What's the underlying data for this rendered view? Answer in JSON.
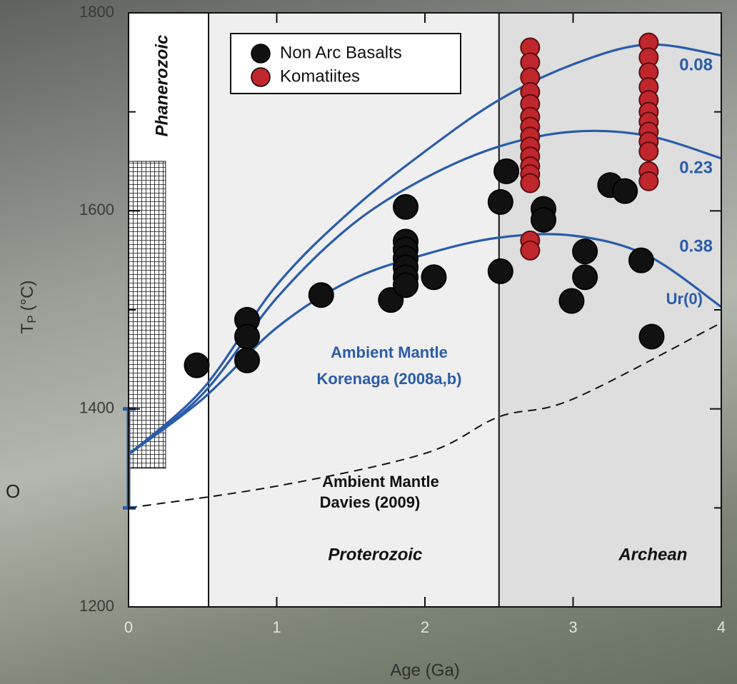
{
  "chart_data": {
    "type": "scatter",
    "xlabel": "Age (Ga)",
    "ylabel": [
      "T",
      "P",
      "(°C)"
    ],
    "xlim": [
      0,
      4
    ],
    "ylim": [
      1200,
      1800
    ],
    "xticks": [
      0,
      1,
      2,
      3,
      4
    ],
    "yticks": [
      1200,
      1400,
      1600,
      1800
    ],
    "yminor": [
      1300,
      1500,
      1700
    ],
    "legend": "upper-center",
    "eras": [
      {
        "label": "Phanerozoic",
        "xlim": [
          0,
          0.54
        ],
        "color": "#ffffff"
      },
      {
        "label": "Proterozoic",
        "xlim": [
          0.54,
          2.5
        ],
        "color": "#efefef"
      },
      {
        "label": "Archean",
        "xlim": [
          2.5,
          4
        ],
        "color": "#dedede"
      }
    ],
    "hatched_range": {
      "xlim": [
        0,
        0.25
      ],
      "ylim": [
        1340,
        1650
      ]
    },
    "error_bar": {
      "x": 0,
      "low": 1300,
      "high": 1400,
      "color": "#2a5ca8"
    },
    "series": [
      {
        "name": "Non Arc Basalts",
        "color": "#111111",
        "x": [
          0.46,
          0.8,
          0.8,
          0.8,
          1.3,
          1.77,
          1.87,
          1.87,
          1.87,
          1.87,
          1.87,
          1.87,
          1.87,
          2.06,
          2.51,
          2.55,
          2.51,
          2.8,
          2.8,
          2.99,
          3.08,
          3.08,
          3.25,
          3.35,
          3.46,
          3.53
        ],
        "values": [
          1444,
          1490,
          1473,
          1449,
          1515,
          1510,
          1604,
          1569,
          1561,
          1552,
          1543,
          1533,
          1525,
          1533,
          1609,
          1640,
          1539,
          1602,
          1591,
          1509,
          1559,
          1533,
          1626,
          1620,
          1550,
          1473
        ]
      },
      {
        "name": "Komatiites",
        "color": "#c0272d",
        "x": [
          2.71,
          2.71,
          2.71,
          2.71,
          2.71,
          2.71,
          2.71,
          2.71,
          2.71,
          2.71,
          2.71,
          2.71,
          2.71,
          2.71,
          2.71,
          3.51,
          3.51,
          3.51,
          3.51,
          3.51,
          3.51,
          3.51,
          3.51,
          3.51,
          3.51,
          3.51,
          3.51
        ],
        "values": [
          1765,
          1750,
          1735,
          1720,
          1708,
          1695,
          1685,
          1675,
          1665,
          1655,
          1645,
          1637,
          1628,
          1570,
          1560,
          1770,
          1755,
          1740,
          1725,
          1712,
          1700,
          1690,
          1680,
          1670,
          1660,
          1640,
          1630
        ]
      }
    ],
    "curves": [
      {
        "label": "0.08",
        "color": "#2a5ca8",
        "x": [
          0,
          0.5,
          1,
          1.5,
          2,
          2.5,
          3,
          3.5,
          4
        ],
        "values": [
          1354,
          1420,
          1525,
          1600,
          1660,
          1712,
          1748,
          1768,
          1757
        ]
      },
      {
        "label": "0.23",
        "color": "#2a5ca8",
        "x": [
          0,
          0.5,
          1,
          1.5,
          2,
          2.5,
          3,
          3.5,
          4
        ],
        "values": [
          1354,
          1415,
          1512,
          1585,
          1633,
          1665,
          1680,
          1676,
          1653
        ]
      },
      {
        "label": "0.38",
        "color": "#2a5ca8",
        "x": [
          0,
          0.5,
          1,
          1.5,
          2,
          2.5,
          3,
          3.5,
          4
        ],
        "values": [
          1354,
          1410,
          1482,
          1530,
          1556,
          1573,
          1575,
          1555,
          1503
        ]
      },
      {
        "color": "#111111",
        "dashed": true,
        "x": [
          0,
          1,
          2,
          2.5,
          3,
          4
        ],
        "values": [
          1300,
          1322,
          1355,
          1392,
          1410,
          1487
        ]
      }
    ],
    "annotations": [
      "Ur(0)",
      "Ambient Mantle",
      "Korenaga (2008a,b)",
      "Ambient Mantle",
      "Davies (2009)",
      "O"
    ]
  }
}
